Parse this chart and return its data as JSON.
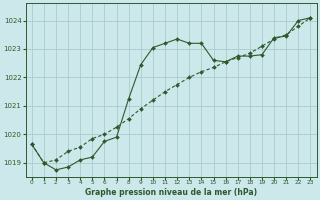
{
  "title": "Graphe pression niveau de la mer (hPa)",
  "bg_color": "#cce8ea",
  "grid_color": "#aacccc",
  "line_color": "#2d5a2d",
  "xlim": [
    -0.5,
    23.5
  ],
  "ylim": [
    1018.5,
    1024.6
  ],
  "yticks": [
    1019,
    1020,
    1021,
    1022,
    1023,
    1024
  ],
  "xticks": [
    0,
    1,
    2,
    3,
    4,
    5,
    6,
    7,
    8,
    9,
    10,
    11,
    12,
    13,
    14,
    15,
    16,
    17,
    18,
    19,
    20,
    21,
    22,
    23
  ],
  "line1_x": [
    0,
    1,
    2,
    3,
    4,
    5,
    6,
    7,
    8,
    9,
    10,
    11,
    12,
    13,
    14,
    15,
    16,
    17,
    18,
    19,
    20,
    21,
    22,
    23
  ],
  "line1_y": [
    1019.65,
    1019.0,
    1018.75,
    1018.85,
    1019.1,
    1019.2,
    1019.75,
    1019.9,
    1021.25,
    1022.45,
    1023.05,
    1023.2,
    1023.35,
    1023.2,
    1023.2,
    1022.6,
    1022.55,
    1022.75,
    1022.75,
    1022.8,
    1023.4,
    1023.45,
    1024.0,
    1024.1
  ],
  "line2_x": [
    0,
    1,
    2,
    3,
    4,
    5,
    6,
    7,
    8,
    9,
    10,
    11,
    12,
    13,
    14,
    15,
    16,
    17,
    18,
    19,
    20,
    21,
    22,
    23
  ],
  "line2_y": [
    1019.65,
    1019.0,
    1019.1,
    1019.4,
    1019.55,
    1019.85,
    1020.0,
    1020.25,
    1020.55,
    1020.9,
    1021.2,
    1021.5,
    1021.75,
    1022.0,
    1022.2,
    1022.35,
    1022.55,
    1022.7,
    1022.85,
    1023.1,
    1023.35,
    1023.5,
    1023.8,
    1024.1
  ],
  "figwidth": 3.2,
  "figheight": 2.0,
  "dpi": 100
}
